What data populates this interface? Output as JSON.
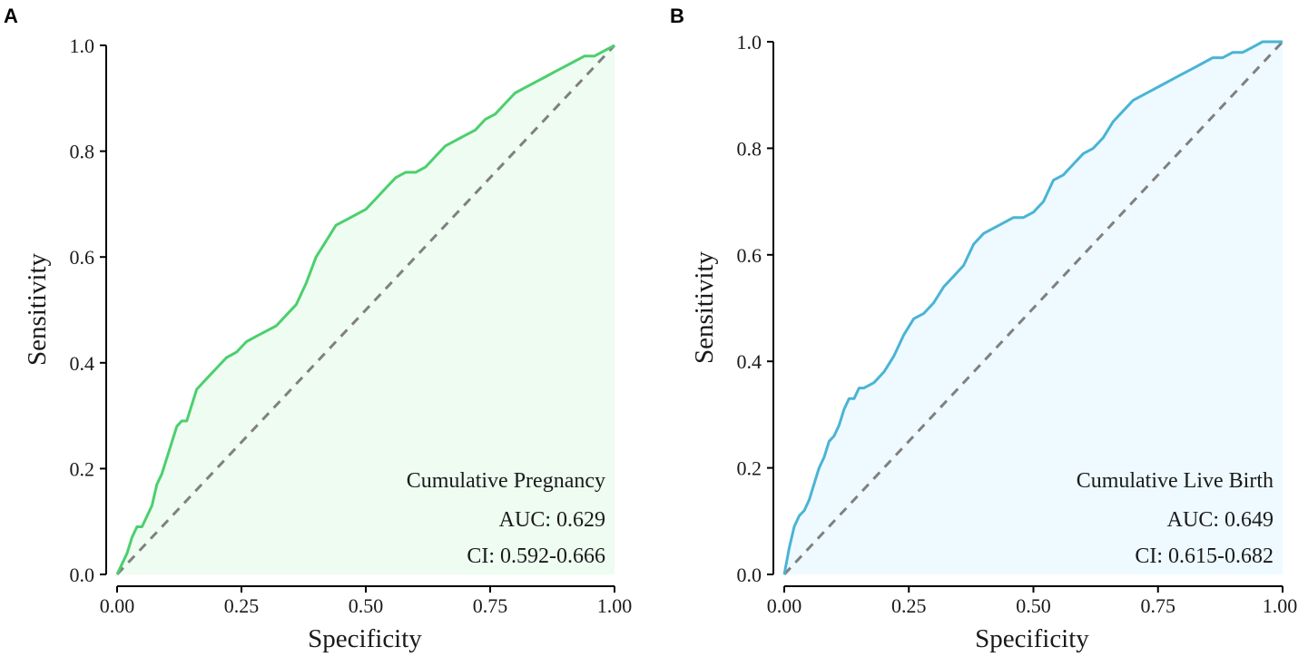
{
  "chart_data": [
    {
      "type": "line",
      "panel_label": "A",
      "title": "",
      "xlabel": "Specificity",
      "ylabel": "Sensitivity",
      "xlim": [
        0,
        1
      ],
      "ylim": [
        0,
        1
      ],
      "xticks": [
        "0.00",
        "0.25",
        "0.50",
        "0.75",
        "1.00"
      ],
      "yticks": [
        "0.0",
        "0.2",
        "0.4",
        "0.6",
        "0.8",
        "1.0"
      ],
      "color": "#4ccf6e",
      "fill_color": "#eefcf1",
      "reference_line_color": "#808080",
      "annotation": {
        "name": "Cumulative Pregnancy",
        "auc": "AUC: 0.629",
        "ci": "CI: 0.592-0.666"
      },
      "series": [
        {
          "name": "Cumulative Pregnancy",
          "x": [
            0.0,
            0.01,
            0.02,
            0.03,
            0.04,
            0.05,
            0.06,
            0.07,
            0.08,
            0.09,
            0.1,
            0.11,
            0.12,
            0.13,
            0.14,
            0.15,
            0.16,
            0.17,
            0.18,
            0.2,
            0.22,
            0.24,
            0.26,
            0.28,
            0.3,
            0.32,
            0.34,
            0.36,
            0.38,
            0.4,
            0.42,
            0.44,
            0.46,
            0.48,
            0.5,
            0.52,
            0.54,
            0.56,
            0.58,
            0.6,
            0.62,
            0.64,
            0.66,
            0.68,
            0.7,
            0.72,
            0.74,
            0.76,
            0.78,
            0.8,
            0.82,
            0.84,
            0.86,
            0.88,
            0.9,
            0.92,
            0.94,
            0.96,
            0.98,
            1.0
          ],
          "y": [
            0.0,
            0.02,
            0.04,
            0.07,
            0.09,
            0.09,
            0.11,
            0.13,
            0.17,
            0.19,
            0.22,
            0.25,
            0.28,
            0.29,
            0.29,
            0.32,
            0.35,
            0.36,
            0.37,
            0.39,
            0.41,
            0.42,
            0.44,
            0.45,
            0.46,
            0.47,
            0.49,
            0.51,
            0.55,
            0.6,
            0.63,
            0.66,
            0.67,
            0.68,
            0.69,
            0.71,
            0.73,
            0.75,
            0.76,
            0.76,
            0.77,
            0.79,
            0.81,
            0.82,
            0.83,
            0.84,
            0.86,
            0.87,
            0.89,
            0.91,
            0.92,
            0.93,
            0.94,
            0.95,
            0.96,
            0.97,
            0.98,
            0.98,
            0.99,
            1.0
          ]
        }
      ]
    },
    {
      "type": "line",
      "panel_label": "B",
      "title": "",
      "xlabel": "Specificity",
      "ylabel": "Sensitivity",
      "xlim": [
        0,
        1
      ],
      "ylim": [
        0,
        1
      ],
      "xticks": [
        "0.00",
        "0.25",
        "0.50",
        "0.75",
        "1.00"
      ],
      "yticks": [
        "0.0",
        "0.2",
        "0.4",
        "0.6",
        "0.8",
        "1.0"
      ],
      "color": "#4ab4d4",
      "fill_color": "#eefaff",
      "reference_line_color": "#808080",
      "annotation": {
        "name": "Cumulative Live Birth",
        "auc": "AUC: 0.649",
        "ci": "CI: 0.615-0.682"
      },
      "series": [
        {
          "name": "Cumulative Live Birth",
          "x": [
            0.0,
            0.01,
            0.02,
            0.03,
            0.04,
            0.05,
            0.06,
            0.07,
            0.08,
            0.09,
            0.1,
            0.11,
            0.12,
            0.13,
            0.14,
            0.15,
            0.16,
            0.18,
            0.2,
            0.22,
            0.24,
            0.26,
            0.28,
            0.3,
            0.32,
            0.34,
            0.36,
            0.38,
            0.4,
            0.42,
            0.44,
            0.46,
            0.48,
            0.5,
            0.52,
            0.54,
            0.56,
            0.58,
            0.6,
            0.62,
            0.64,
            0.66,
            0.68,
            0.7,
            0.72,
            0.74,
            0.76,
            0.78,
            0.8,
            0.82,
            0.84,
            0.86,
            0.88,
            0.9,
            0.92,
            0.94,
            0.96,
            0.98,
            1.0
          ],
          "y": [
            0.0,
            0.05,
            0.09,
            0.11,
            0.12,
            0.14,
            0.17,
            0.2,
            0.22,
            0.25,
            0.26,
            0.28,
            0.31,
            0.33,
            0.33,
            0.35,
            0.35,
            0.36,
            0.38,
            0.41,
            0.45,
            0.48,
            0.49,
            0.51,
            0.54,
            0.56,
            0.58,
            0.62,
            0.64,
            0.65,
            0.66,
            0.67,
            0.67,
            0.68,
            0.7,
            0.74,
            0.75,
            0.77,
            0.79,
            0.8,
            0.82,
            0.85,
            0.87,
            0.89,
            0.9,
            0.91,
            0.92,
            0.93,
            0.94,
            0.95,
            0.96,
            0.97,
            0.97,
            0.98,
            0.98,
            0.99,
            1.0,
            1.0,
            1.0
          ]
        }
      ]
    }
  ]
}
